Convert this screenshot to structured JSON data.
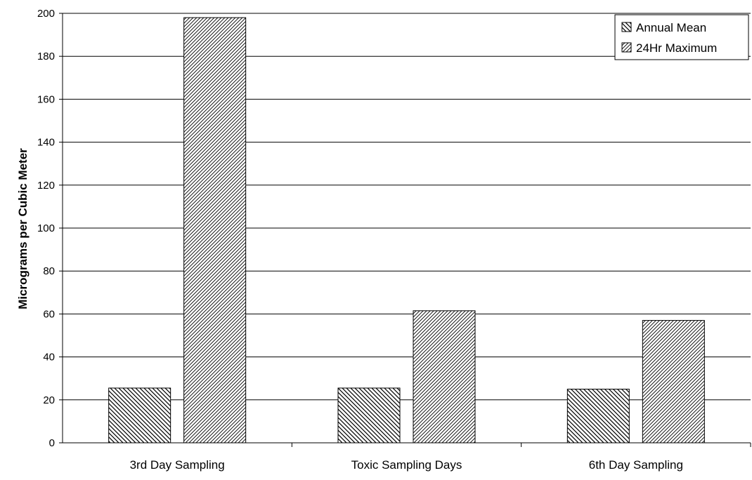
{
  "chart_data": {
    "type": "bar",
    "title": "",
    "xlabel": "",
    "ylabel": "Micrograms per Cubic Meter",
    "ylim": [
      0,
      200
    ],
    "yticks": [
      0,
      20,
      40,
      60,
      80,
      100,
      120,
      140,
      160,
      180,
      200
    ],
    "grid": true,
    "legend_position": "top-right",
    "categories": [
      "3rd Day Sampling",
      "Toxic Sampling Days",
      "6th Day Sampling"
    ],
    "series": [
      {
        "name": "Annual Mean",
        "values": [
          25.5,
          25.5,
          25
        ],
        "pattern": "backward-diagonal-hatch"
      },
      {
        "name": "24Hr Maximum",
        "values": [
          198,
          61.5,
          57
        ],
        "pattern": "forward-diagonal-hatch"
      }
    ],
    "colors": {
      "bar_fill": "#ffffff",
      "hatch": "#000000",
      "grid": "#000000"
    }
  }
}
